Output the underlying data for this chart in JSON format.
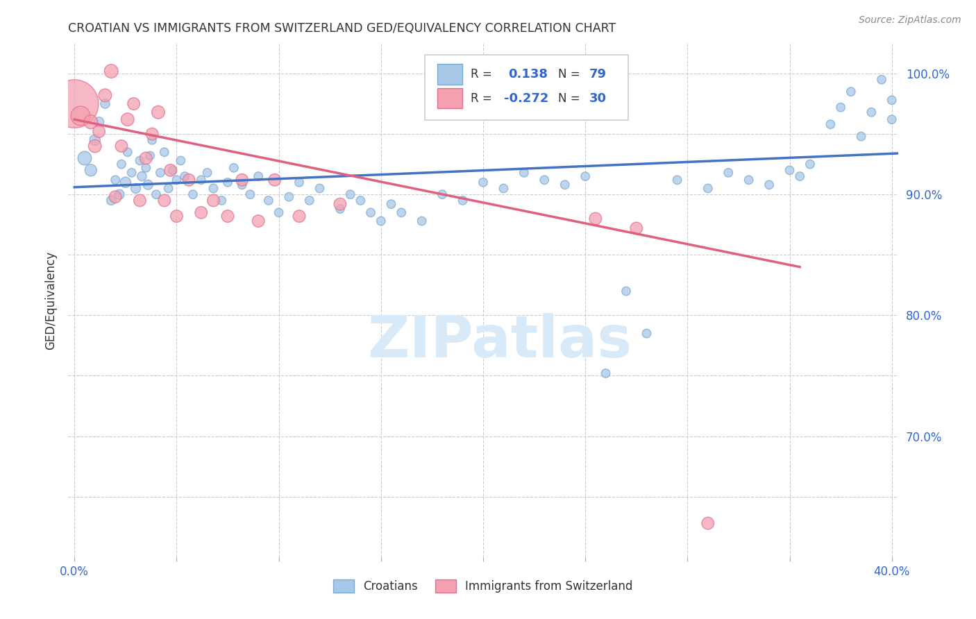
{
  "title": "CROATIAN VS IMMIGRANTS FROM SWITZERLAND GED/EQUIVALENCY CORRELATION CHART",
  "source": "Source: ZipAtlas.com",
  "ylabel": "GED/Equivalency",
  "watermark": "ZIPatlas",
  "xlim": [
    -0.003,
    0.403
  ],
  "ylim": [
    0.605,
    1.025
  ],
  "xticks": [
    0.0,
    0.05,
    0.1,
    0.15,
    0.2,
    0.25,
    0.3,
    0.35,
    0.4
  ],
  "yticks": [
    0.6,
    0.65,
    0.7,
    0.75,
    0.8,
    0.85,
    0.9,
    0.95,
    1.0
  ],
  "ytick_labels_right": [
    "",
    "",
    "70.0%",
    "",
    "80.0%",
    "",
    "90.0%",
    "",
    "100.0%"
  ],
  "blue_color": "#A8C8E8",
  "pink_color": "#F4A0B0",
  "line_blue": "#4472C4",
  "line_pink": "#E06080",
  "blue_trend_x": [
    0.0,
    0.403
  ],
  "blue_trend_y": [
    0.906,
    0.934
  ],
  "pink_trend_x": [
    0.0,
    0.355
  ],
  "pink_trend_y": [
    0.962,
    0.84
  ],
  "croatians_x": [
    0.005,
    0.008,
    0.01,
    0.012,
    0.015,
    0.018,
    0.02,
    0.022,
    0.023,
    0.025,
    0.026,
    0.028,
    0.03,
    0.032,
    0.033,
    0.035,
    0.036,
    0.037,
    0.038,
    0.04,
    0.042,
    0.044,
    0.046,
    0.048,
    0.05,
    0.052,
    0.054,
    0.058,
    0.062,
    0.065,
    0.068,
    0.072,
    0.075,
    0.078,
    0.082,
    0.086,
    0.09,
    0.095,
    0.1,
    0.105,
    0.11,
    0.115,
    0.12,
    0.13,
    0.135,
    0.14,
    0.145,
    0.15,
    0.155,
    0.16,
    0.17,
    0.18,
    0.19,
    0.2,
    0.21,
    0.22,
    0.23,
    0.24,
    0.25,
    0.26,
    0.27,
    0.28,
    0.295,
    0.31,
    0.32,
    0.33,
    0.34,
    0.35,
    0.355,
    0.36,
    0.37,
    0.375,
    0.38,
    0.385,
    0.39,
    0.395,
    0.4,
    0.4
  ],
  "croatians_y": [
    0.93,
    0.92,
    0.945,
    0.96,
    0.975,
    0.895,
    0.912,
    0.9,
    0.925,
    0.91,
    0.935,
    0.918,
    0.905,
    0.928,
    0.915,
    0.922,
    0.908,
    0.932,
    0.945,
    0.9,
    0.918,
    0.935,
    0.905,
    0.92,
    0.912,
    0.928,
    0.915,
    0.9,
    0.912,
    0.918,
    0.905,
    0.895,
    0.91,
    0.922,
    0.908,
    0.9,
    0.915,
    0.895,
    0.885,
    0.898,
    0.91,
    0.895,
    0.905,
    0.888,
    0.9,
    0.895,
    0.885,
    0.878,
    0.892,
    0.885,
    0.878,
    0.9,
    0.895,
    0.91,
    0.905,
    0.918,
    0.912,
    0.908,
    0.915,
    0.752,
    0.82,
    0.785,
    0.912,
    0.905,
    0.918,
    0.912,
    0.908,
    0.92,
    0.915,
    0.925,
    0.958,
    0.972,
    0.985,
    0.948,
    0.968,
    0.995,
    0.962,
    0.978
  ],
  "croatians_sizes": [
    200,
    150,
    120,
    100,
    90,
    90,
    80,
    100,
    80,
    120,
    80,
    80,
    100,
    80,
    90,
    80,
    100,
    80,
    80,
    80,
    80,
    80,
    80,
    80,
    80,
    80,
    80,
    80,
    80,
    80,
    80,
    80,
    80,
    80,
    80,
    80,
    80,
    80,
    80,
    80,
    80,
    80,
    80,
    80,
    80,
    80,
    80,
    80,
    80,
    80,
    80,
    80,
    80,
    80,
    80,
    80,
    80,
    80,
    80,
    80,
    80,
    80,
    80,
    80,
    80,
    80,
    80,
    80,
    80,
    80,
    80,
    80,
    80,
    80,
    80,
    80,
    80,
    80
  ],
  "swiss_x": [
    0.0,
    0.003,
    0.008,
    0.01,
    0.012,
    0.015,
    0.018,
    0.02,
    0.023,
    0.026,
    0.029,
    0.032,
    0.035,
    0.038,
    0.041,
    0.044,
    0.047,
    0.05,
    0.056,
    0.062,
    0.068,
    0.075,
    0.082,
    0.09,
    0.098,
    0.11,
    0.13,
    0.255,
    0.275,
    0.31
  ],
  "swiss_y": [
    0.975,
    0.965,
    0.96,
    0.94,
    0.952,
    0.982,
    1.002,
    0.898,
    0.94,
    0.962,
    0.975,
    0.895,
    0.93,
    0.95,
    0.968,
    0.895,
    0.92,
    0.882,
    0.912,
    0.885,
    0.895,
    0.882,
    0.912,
    0.878,
    0.912,
    0.882,
    0.892,
    0.88,
    0.872,
    0.628
  ],
  "swiss_sizes": [
    2500,
    400,
    200,
    180,
    160,
    180,
    200,
    160,
    160,
    180,
    160,
    160,
    160,
    160,
    180,
    160,
    160,
    160,
    160,
    160,
    160,
    160,
    160,
    160,
    160,
    160,
    160,
    160,
    160,
    160
  ]
}
